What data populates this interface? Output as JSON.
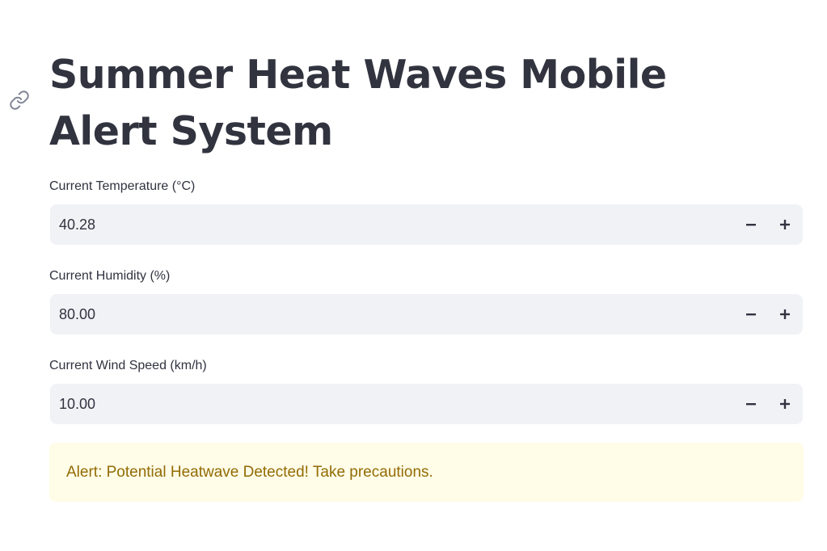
{
  "app": {
    "title": "Summer Heat Waves Mobile Alert System"
  },
  "inputs": [
    {
      "label": "Current Temperature (°C)",
      "value": "40.28",
      "decrement_label": "−",
      "increment_label": "+"
    },
    {
      "label": "Current Humidity (%)",
      "value": "80.00",
      "decrement_label": "−",
      "increment_label": "+"
    },
    {
      "label": "Current Wind Speed (km/h)",
      "value": "10.00",
      "decrement_label": "−",
      "increment_label": "+"
    }
  ],
  "alert": {
    "message": "Alert: Potential Heatwave Detected! Take precautions.",
    "background_color": "#fffce7",
    "text_color": "#926c05"
  },
  "colors": {
    "text": "#31333f",
    "input_background": "#f0f2f6",
    "icon": "#808495"
  },
  "icons": {
    "anchor": "link-icon",
    "decrement": "minus-icon",
    "increment": "plus-icon"
  }
}
